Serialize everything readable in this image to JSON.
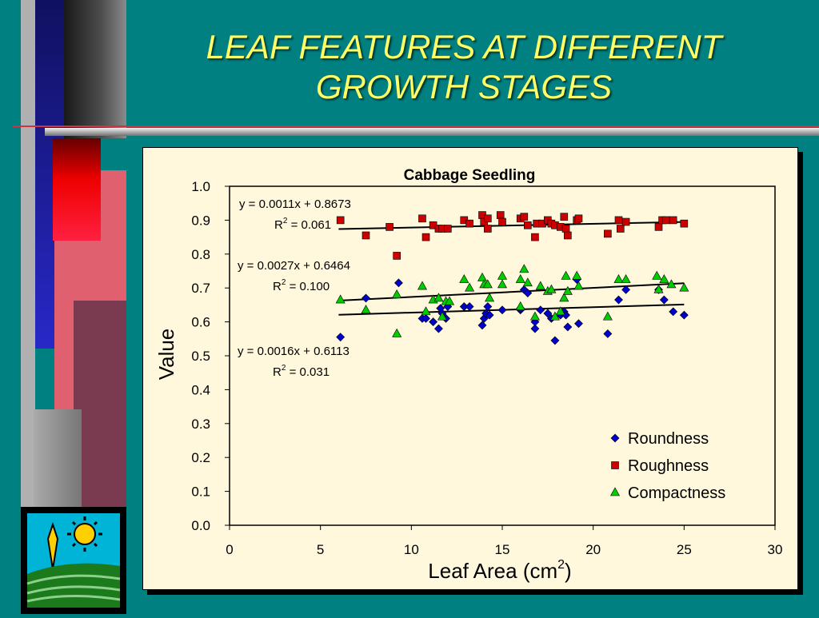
{
  "slide": {
    "title_line1": "LEAF FEATURES AT DIFFERENT",
    "title_line2": "GROWTH STAGES"
  },
  "colors": {
    "background": "#008080",
    "title": "#ffff66",
    "plot_background": "#fff8dc",
    "roundness": "#0000cc",
    "roughness": "#cc0000",
    "compactness": "#00cc00"
  },
  "chart_data": {
    "type": "scatter",
    "title": "Cabbage Seedling",
    "xlabel": "Leaf Area (cm",
    "xlabel_sup": "2",
    "xlabel_end": ")",
    "ylabel": "Value",
    "xlim": [
      0,
      30
    ],
    "ylim": [
      0,
      1.0
    ],
    "xticks": [
      "0",
      "5",
      "10",
      "15",
      "20",
      "25",
      "30"
    ],
    "yticks": [
      "0.0",
      "0.1",
      "0.2",
      "0.3",
      "0.4",
      "0.5",
      "0.6",
      "0.7",
      "0.8",
      "0.9",
      "1.0"
    ],
    "grid": false,
    "legend_position": "bottom-right",
    "series": [
      {
        "name": "Roundness",
        "marker": "diamond",
        "color": "#0000cc",
        "trend": {
          "slope": 0.0016,
          "intercept": 0.6113,
          "x_range": [
            6,
            25
          ]
        },
        "equation": "y = 0.0016x + 0.6113",
        "r2_label": "R",
        "r2_sup": "2",
        "r2_value": " = 0.031",
        "x": [
          6.1,
          7.5,
          9.3,
          10.6,
          10.8,
          11.2,
          11.5,
          11.6,
          11.7,
          11.9,
          12.0,
          12.9,
          13.2,
          13.9,
          14.0,
          14.1,
          14.2,
          14.3,
          15.0,
          16.0,
          16.0,
          16.2,
          16.4,
          16.8,
          16.8,
          17.1,
          17.5,
          17.7,
          17.9,
          18.2,
          18.4,
          18.5,
          18.6,
          19.1,
          19.2,
          20.8,
          21.4,
          21.8,
          23.6,
          23.9,
          24.4,
          25.0
        ],
        "y": [
          0.555,
          0.67,
          0.715,
          0.61,
          0.61,
          0.6,
          0.58,
          0.64,
          0.625,
          0.61,
          0.645,
          0.645,
          0.645,
          0.59,
          0.61,
          0.625,
          0.645,
          0.62,
          0.635,
          0.635,
          0.64,
          0.695,
          0.685,
          0.58,
          0.6,
          0.635,
          0.625,
          0.61,
          0.545,
          0.62,
          0.63,
          0.62,
          0.585,
          0.725,
          0.595,
          0.565,
          0.665,
          0.695,
          0.695,
          0.665,
          0.63,
          0.62
        ]
      },
      {
        "name": "Roughness",
        "marker": "square",
        "color": "#cc0000",
        "trend": {
          "slope": 0.0011,
          "intercept": 0.8673,
          "x_range": [
            6,
            25
          ]
        },
        "equation": "y = 0.0011x + 0.8673",
        "r2_label": "R",
        "r2_sup": "2",
        "r2_value": " = 0.061",
        "x": [
          6.1,
          7.5,
          8.8,
          9.2,
          10.6,
          10.8,
          11.2,
          11.5,
          11.7,
          12.0,
          12.9,
          13.2,
          13.9,
          14.0,
          14.2,
          14.2,
          14.9,
          15.0,
          16.0,
          16.2,
          16.4,
          16.8,
          16.9,
          17.2,
          17.5,
          17.7,
          17.9,
          18.2,
          18.4,
          18.5,
          18.6,
          19.1,
          19.2,
          20.8,
          21.4,
          21.5,
          21.8,
          23.6,
          23.8,
          24.0,
          24.4,
          25.0
        ],
        "y": [
          0.9,
          0.855,
          0.88,
          0.795,
          0.905,
          0.85,
          0.885,
          0.875,
          0.875,
          0.875,
          0.9,
          0.89,
          0.915,
          0.895,
          0.905,
          0.875,
          0.915,
          0.895,
          0.905,
          0.91,
          0.885,
          0.85,
          0.89,
          0.89,
          0.9,
          0.89,
          0.885,
          0.88,
          0.91,
          0.875,
          0.855,
          0.9,
          0.905,
          0.86,
          0.9,
          0.875,
          0.895,
          0.88,
          0.9,
          0.9,
          0.9,
          0.89
        ]
      },
      {
        "name": "Compactness",
        "marker": "triangle",
        "color": "#00cc00",
        "trend": {
          "slope": 0.0027,
          "intercept": 0.6464,
          "x_range": [
            6,
            25
          ]
        },
        "equation": "y = 0.0027x + 0.6464",
        "r2_label": "R",
        "r2_sup": "2",
        "r2_value": " = 0.100",
        "x": [
          6.1,
          7.5,
          9.2,
          9.2,
          10.6,
          10.8,
          11.2,
          11.5,
          11.7,
          11.9,
          12.1,
          12.9,
          13.2,
          13.9,
          14.0,
          14.2,
          14.3,
          15.0,
          15.0,
          16.0,
          16.0,
          16.2,
          16.4,
          16.8,
          17.1,
          17.5,
          17.7,
          17.9,
          18.2,
          18.4,
          18.5,
          18.6,
          19.1,
          19.2,
          20.8,
          21.4,
          21.8,
          23.5,
          23.6,
          23.9,
          24.3,
          25.0
        ],
        "y": [
          0.665,
          0.635,
          0.68,
          0.565,
          0.705,
          0.63,
          0.665,
          0.67,
          0.615,
          0.66,
          0.66,
          0.725,
          0.7,
          0.73,
          0.71,
          0.71,
          0.67,
          0.735,
          0.71,
          0.725,
          0.645,
          0.755,
          0.715,
          0.615,
          0.705,
          0.69,
          0.695,
          0.615,
          0.63,
          0.67,
          0.735,
          0.69,
          0.735,
          0.705,
          0.615,
          0.725,
          0.725,
          0.735,
          0.695,
          0.725,
          0.71,
          0.7
        ]
      }
    ]
  }
}
